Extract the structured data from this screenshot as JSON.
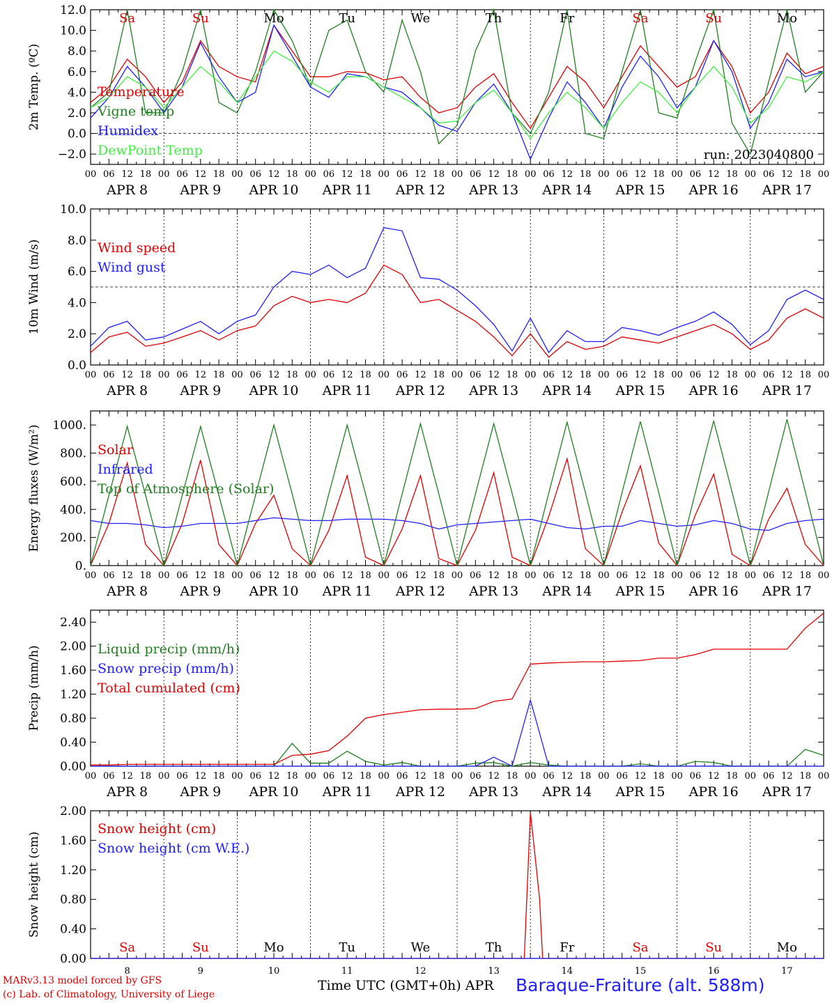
{
  "days": [
    "8",
    "9",
    "10",
    "11",
    "12",
    "13",
    "14",
    "15",
    "16",
    "17"
  ],
  "month": "APR",
  "hour_ticks": [
    "00",
    "06",
    "12",
    "18"
  ],
  "weekdays": [
    {
      "label": "Sa",
      "color": "#e00000"
    },
    {
      "label": "Su",
      "color": "#e00000"
    },
    {
      "label": "Mo",
      "color": "#000000"
    },
    {
      "label": "Tu",
      "color": "#000000"
    },
    {
      "label": "We",
      "color": "#000000"
    },
    {
      "label": "Th",
      "color": "#000000"
    },
    {
      "label": "Fr",
      "color": "#000000"
    },
    {
      "label": "Sa",
      "color": "#e00000"
    },
    {
      "label": "Su",
      "color": "#e00000"
    },
    {
      "label": "Mo",
      "color": "#000000"
    }
  ],
  "footer": {
    "credit_line1": "MARv3.13 model forced by GFS",
    "credit_line2": "(c) Lab. of Climatology, University of Liege",
    "x_title": "Time UTC (GMT+0h) APR",
    "station": "Baraque-Fraiture (alt. 588m)"
  },
  "chart_data": [
    {
      "type": "line",
      "ylabel": "2m Temp. (ºC)",
      "ylim": [
        -3,
        12
      ],
      "yticks": [
        "12.0",
        "10.0",
        "8.0",
        "6.0",
        "4.0",
        "2.0",
        "0.0",
        "−2.0"
      ],
      "ytick_values": [
        12,
        10,
        8,
        6,
        4,
        2,
        0,
        -2
      ],
      "reference_line": 0,
      "annotation": "run: 2023040800",
      "show_weekdays_top": true,
      "x": [
        0,
        6,
        12,
        18,
        24,
        30,
        36,
        42,
        48,
        54,
        60,
        66,
        72,
        78,
        84,
        90,
        96,
        102,
        108,
        114,
        120,
        126,
        132,
        138,
        144,
        150,
        156,
        162,
        168,
        174,
        180,
        186,
        192,
        198,
        204,
        210,
        216,
        222,
        228,
        234,
        240
      ],
      "series": [
        {
          "name": "Temperature",
          "color": "#e00000",
          "values": [
            3.0,
            4.5,
            7.2,
            5.5,
            3.0,
            5.0,
            9.0,
            6.5,
            5.5,
            5.0,
            10.5,
            8.0,
            5.5,
            5.5,
            6.0,
            5.9,
            5.2,
            5.5,
            3.5,
            2.0,
            2.5,
            4.5,
            5.8,
            3.0,
            0.5,
            3.5,
            6.5,
            5.0,
            2.5,
            5.5,
            8.5,
            6.5,
            4.5,
            5.5,
            9.0,
            6.5,
            2.0,
            4.0,
            7.8,
            5.8,
            6.5
          ]
        },
        {
          "name": "Vigne temp",
          "color": "#208020",
          "values": [
            2.5,
            4.0,
            12.0,
            2.0,
            2.0,
            6.0,
            12.0,
            3.0,
            2.0,
            6.0,
            12.0,
            9.0,
            4.5,
            10.0,
            11.0,
            6.0,
            4.0,
            11.0,
            6.0,
            -1.0,
            0.8,
            8.0,
            12.0,
            2.0,
            0.0,
            4.0,
            12.0,
            0.0,
            -0.5,
            6.0,
            12.0,
            2.0,
            1.5,
            7.0,
            12.0,
            1.0,
            -2.0,
            5.0,
            12.0,
            4.0,
            6.0
          ]
        },
        {
          "name": "Humidex",
          "color": "#2020ff",
          "values": [
            1.5,
            3.5,
            6.5,
            4.5,
            2.0,
            4.5,
            8.8,
            5.5,
            3.0,
            4.0,
            10.5,
            7.5,
            4.5,
            3.5,
            5.8,
            5.5,
            4.5,
            4.0,
            2.5,
            0.8,
            0.2,
            3.0,
            4.8,
            2.0,
            -2.5,
            1.5,
            5.0,
            3.0,
            0.5,
            4.5,
            7.5,
            5.5,
            2.5,
            4.5,
            9.0,
            6.0,
            0.5,
            3.0,
            7.2,
            5.5,
            6.0
          ]
        },
        {
          "name": "DewPoint Temp",
          "color": "#40ee40",
          "values": [
            2.5,
            3.5,
            5.5,
            4.5,
            2.5,
            4.5,
            6.5,
            5.0,
            3.0,
            5.5,
            8.0,
            7.0,
            5.0,
            4.0,
            5.5,
            5.5,
            4.5,
            3.5,
            2.5,
            1.0,
            1.2,
            3.0,
            4.2,
            2.0,
            -0.5,
            2.0,
            4.0,
            2.5,
            0.5,
            3.0,
            5.0,
            4.0,
            2.0,
            4.5,
            6.5,
            4.5,
            1.0,
            2.5,
            5.5,
            5.0,
            6.0
          ]
        }
      ]
    },
    {
      "type": "line",
      "ylabel": "10m Wind (m/s)",
      "ylim": [
        0,
        10
      ],
      "yticks": [
        "10.0",
        "8.0",
        "6.0",
        "4.0",
        "2.0",
        "0.0"
      ],
      "ytick_values": [
        10,
        8,
        6,
        4,
        2,
        0
      ],
      "reference_line": 5,
      "x": [
        0,
        6,
        12,
        18,
        24,
        30,
        36,
        42,
        48,
        54,
        60,
        66,
        72,
        78,
        84,
        90,
        96,
        102,
        108,
        114,
        120,
        126,
        132,
        138,
        144,
        150,
        156,
        162,
        168,
        174,
        180,
        186,
        192,
        198,
        204,
        210,
        216,
        222,
        228,
        234,
        240
      ],
      "series": [
        {
          "name": "Wind speed",
          "color": "#e00000",
          "values": [
            0.8,
            1.8,
            2.1,
            1.2,
            1.4,
            1.8,
            2.2,
            1.6,
            2.2,
            2.5,
            3.8,
            4.4,
            4.0,
            4.2,
            4.0,
            4.6,
            6.4,
            5.8,
            4.0,
            4.2,
            3.5,
            2.8,
            1.8,
            0.6,
            2.0,
            0.5,
            1.5,
            1.0,
            1.2,
            1.8,
            1.6,
            1.4,
            1.8,
            2.2,
            2.6,
            2.0,
            1.0,
            1.6,
            3.0,
            3.6,
            3.0
          ]
        },
        {
          "name": "Wind gust",
          "color": "#2020ff",
          "values": [
            1.2,
            2.4,
            2.8,
            1.6,
            1.8,
            2.3,
            2.8,
            2.0,
            2.8,
            3.2,
            5.0,
            6.0,
            5.8,
            6.4,
            5.6,
            6.2,
            8.8,
            8.6,
            5.6,
            5.5,
            4.8,
            3.8,
            2.6,
            0.9,
            3.0,
            0.8,
            2.2,
            1.5,
            1.5,
            2.4,
            2.2,
            1.9,
            2.4,
            2.8,
            3.4,
            2.6,
            1.3,
            2.2,
            4.2,
            4.8,
            4.2
          ]
        }
      ]
    },
    {
      "type": "line",
      "ylabel": "Energy fluxes (W/m²)",
      "ylim": [
        0,
        1100
      ],
      "yticks": [
        "1000.",
        "800.",
        "600.",
        "400.",
        "200.",
        "0."
      ],
      "ytick_values": [
        1000,
        800,
        600,
        400,
        200,
        0
      ],
      "x": [
        0,
        6,
        12,
        18,
        24,
        30,
        36,
        42,
        48,
        54,
        60,
        66,
        72,
        78,
        84,
        90,
        96,
        102,
        108,
        114,
        120,
        126,
        132,
        138,
        144,
        150,
        156,
        162,
        168,
        174,
        180,
        186,
        192,
        198,
        204,
        210,
        216,
        222,
        228,
        234,
        240
      ],
      "series": [
        {
          "name": "Solar",
          "color": "#e00000",
          "values": [
            0,
            300,
            730,
            150,
            0,
            300,
            750,
            150,
            0,
            300,
            500,
            120,
            0,
            250,
            640,
            60,
            0,
            260,
            640,
            50,
            0,
            250,
            660,
            60,
            0,
            350,
            760,
            120,
            0,
            380,
            710,
            160,
            0,
            360,
            650,
            80,
            0,
            330,
            550,
            150,
            0
          ]
        },
        {
          "name": "Infrared",
          "color": "#2020ff",
          "values": [
            320,
            300,
            300,
            290,
            270,
            280,
            300,
            300,
            300,
            320,
            340,
            330,
            320,
            320,
            330,
            330,
            330,
            320,
            300,
            260,
            290,
            300,
            310,
            320,
            330,
            300,
            270,
            260,
            280,
            280,
            320,
            300,
            280,
            290,
            320,
            300,
            260,
            250,
            300,
            320,
            330
          ]
        },
        {
          "name": "Top of Atmosphere (Solar)",
          "color": "#208020",
          "values": [
            0,
            500,
            990,
            500,
            0,
            500,
            990,
            500,
            0,
            500,
            1000,
            510,
            0,
            510,
            1000,
            510,
            0,
            510,
            1010,
            510,
            0,
            510,
            1010,
            515,
            0,
            515,
            1020,
            520,
            0,
            520,
            1025,
            520,
            0,
            520,
            1030,
            525,
            0,
            525,
            1040,
            525,
            0
          ]
        }
      ]
    },
    {
      "type": "line",
      "ylabel": "Precip (mm/h)",
      "ylim": [
        0,
        2.6
      ],
      "yticks": [
        "2.40",
        "2.00",
        "1.60",
        "1.20",
        "0.80",
        "0.40",
        "0.00"
      ],
      "ytick_values": [
        2.4,
        2.0,
        1.6,
        1.2,
        0.8,
        0.4,
        0.0
      ],
      "x": [
        0,
        6,
        12,
        18,
        24,
        30,
        36,
        42,
        48,
        54,
        60,
        66,
        72,
        78,
        84,
        90,
        96,
        102,
        108,
        114,
        120,
        126,
        132,
        138,
        144,
        150,
        156,
        162,
        168,
        174,
        180,
        186,
        192,
        198,
        204,
        210,
        216,
        222,
        228,
        234,
        240
      ],
      "series": [
        {
          "name": "Liquid precip (mm/h)",
          "color": "#208020",
          "values": [
            0,
            0,
            0,
            0,
            0,
            0,
            0,
            0,
            0,
            0,
            0,
            0.38,
            0.05,
            0.05,
            0.25,
            0.08,
            0.02,
            0.06,
            0,
            0,
            0,
            0.05,
            0.06,
            0,
            0.06,
            0.02,
            0,
            0,
            0,
            0,
            0.04,
            0,
            0,
            0.08,
            0.06,
            0,
            0,
            0,
            0,
            0.28,
            0.18
          ]
        },
        {
          "name": "Snow precip (mm/h)",
          "color": "#2020ff",
          "values": [
            0,
            0,
            0,
            0,
            0,
            0,
            0,
            0,
            0,
            0,
            0,
            0,
            0,
            0,
            0,
            0,
            0,
            0,
            0,
            0,
            0,
            0,
            0.15,
            0,
            1.1,
            0,
            0,
            0,
            0,
            0,
            0,
            0,
            0,
            0,
            0,
            0,
            0,
            0,
            0,
            0,
            0
          ]
        },
        {
          "name": "Total cumulated (cm)",
          "color": "#e00000",
          "values": [
            0.02,
            0.02,
            0.03,
            0.03,
            0.03,
            0.03,
            0.03,
            0.03,
            0.03,
            0.03,
            0.03,
            0.18,
            0.2,
            0.26,
            0.5,
            0.8,
            0.86,
            0.9,
            0.94,
            0.95,
            0.95,
            0.96,
            1.08,
            1.12,
            1.7,
            1.72,
            1.73,
            1.74,
            1.74,
            1.75,
            1.76,
            1.8,
            1.8,
            1.86,
            1.95,
            1.95,
            1.95,
            1.95,
            1.95,
            2.3,
            2.55
          ]
        }
      ]
    },
    {
      "type": "line",
      "ylabel": "Snow height (cm)",
      "ylim": [
        0,
        2.0
      ],
      "yticks": [
        "2.00",
        "1.60",
        "1.20",
        "0.80",
        "0.40",
        "0.00"
      ],
      "ytick_values": [
        2.0,
        1.6,
        1.2,
        0.8,
        0.4,
        0.0
      ],
      "show_weekdays_bottom": true,
      "x": [
        0,
        140,
        141,
        142,
        144,
        146,
        147,
        148,
        240
      ],
      "series": [
        {
          "name": "Snow height (cm)",
          "color": "#e00000",
          "values": [
            0,
            0,
            0,
            0,
            1.98,
            1.2,
            0.8,
            0,
            0
          ]
        },
        {
          "name": "Snow height (cm W.E.)",
          "color": "#2020ff",
          "values": [
            0,
            0,
            0,
            0,
            0,
            0,
            0,
            0,
            0
          ]
        }
      ]
    }
  ]
}
